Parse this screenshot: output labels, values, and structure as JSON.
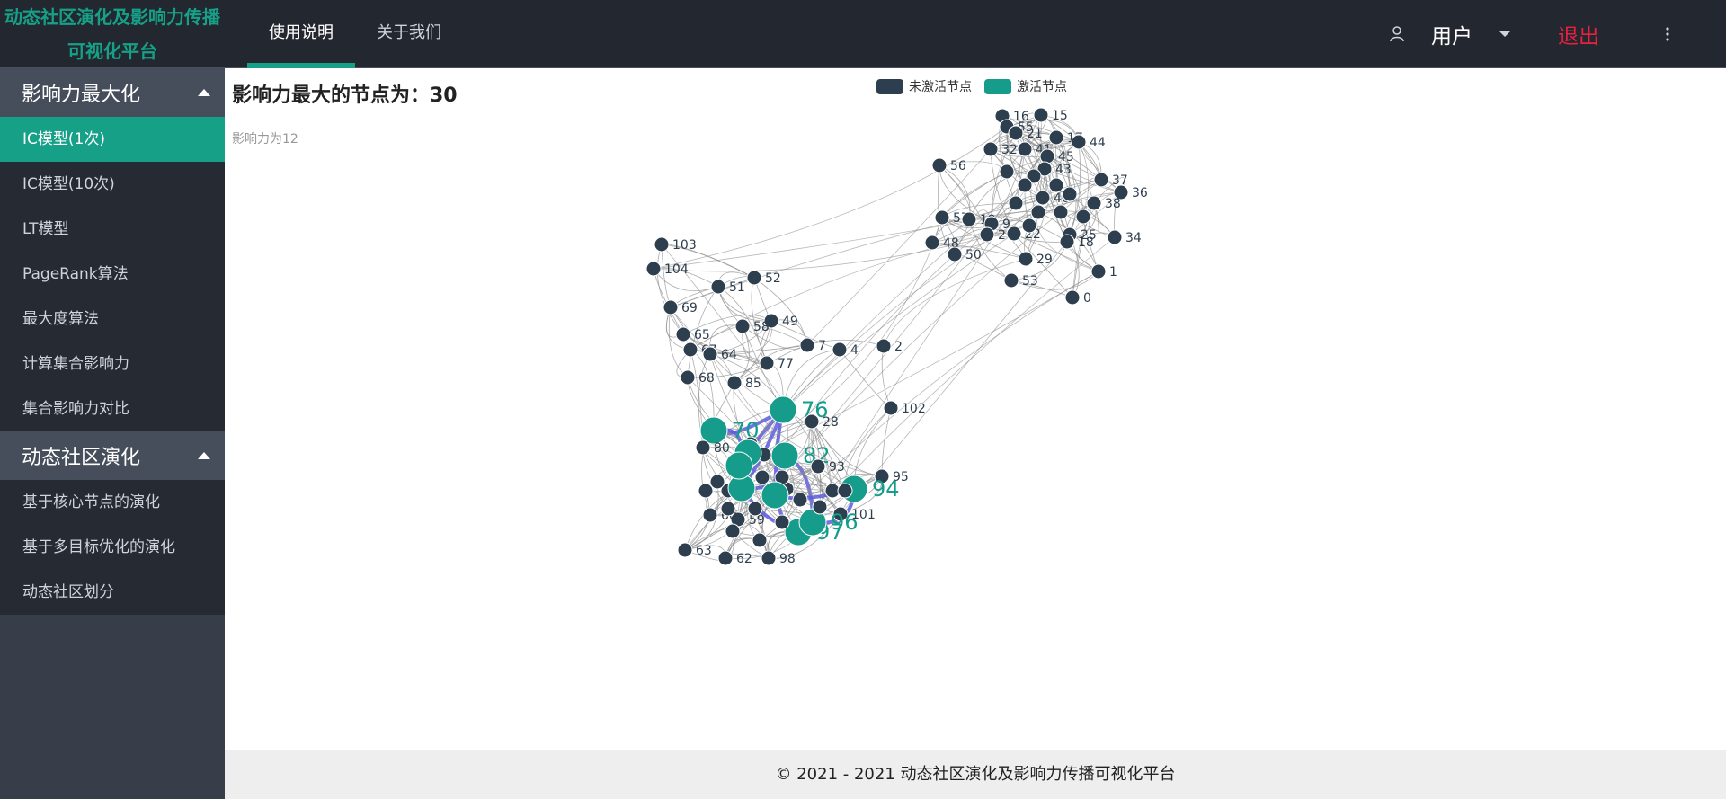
{
  "app": {
    "title": "动态社区演化及影响力传播\n可视化平台"
  },
  "nav": {
    "tabs": [
      {
        "label": "使用说明",
        "active": true
      },
      {
        "label": "关于我们",
        "active": false
      }
    ]
  },
  "user": {
    "label": "用户",
    "logout": "退出",
    "icon": "user-icon",
    "caret_icon": "caret-down-icon",
    "more_icon": "more-vertical-icon"
  },
  "sidebar": {
    "groups": [
      {
        "title": "影响力最大化",
        "items": [
          "IC模型(1次)",
          "IC模型(10次)",
          "LT模型",
          "PageRank算法",
          "最大度算法",
          "计算集合影响力",
          "集合影响力对比"
        ]
      },
      {
        "title": "动态社区演化",
        "items": [
          "基于核心节点的演化",
          "基于多目标优化的演化",
          "动态社区划分"
        ]
      }
    ],
    "active_item": "IC模型(1次)"
  },
  "main": {
    "title": "影响力最大的节点为：30",
    "subtitle": "影响力为12"
  },
  "legend": {
    "inactive_label": "未激活节点",
    "active_label": "激活节点",
    "inactive_color": "#2d3e4e",
    "active_color": "#169c8b"
  },
  "graph": {
    "node_labels": [
      "16",
      "55",
      "15",
      "21",
      "17",
      "44",
      "32",
      "41",
      "45",
      "56",
      "43",
      "37",
      "36",
      "40",
      "38",
      "57",
      "19",
      "9",
      "22",
      "25",
      "18",
      "34",
      "103",
      "48",
      "2",
      "50",
      "29",
      "1",
      "104",
      "53",
      "51",
      "52",
      "0",
      "69",
      "49",
      "58",
      "65",
      "67",
      "64",
      "7",
      "4",
      "2",
      "68",
      "77",
      "85",
      "102",
      "76",
      "70",
      "28",
      "80",
      "82",
      "93",
      "95",
      "94",
      "63",
      "62",
      "98",
      "101",
      "97",
      "96",
      "59",
      "60"
    ],
    "active_labels": [
      "76",
      "70",
      "82",
      "94",
      "97",
      "96"
    ]
  },
  "footer": {
    "text": "© 2021 - 2021 动态社区演化及影响力传播可视化平台"
  },
  "colors": {
    "accent": "#16a087",
    "topbar": "#23272f",
    "logout": "#e8213f",
    "edge": "#8a8a8a",
    "highlight_edge": "#5a5ae0"
  }
}
